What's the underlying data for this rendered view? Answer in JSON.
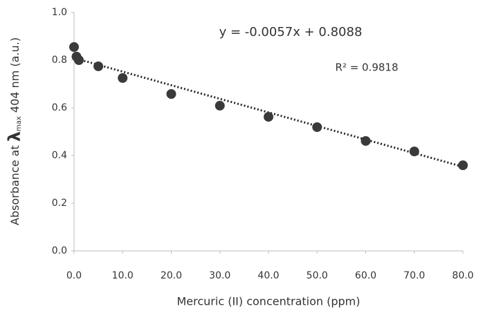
{
  "chart_data": {
    "type": "scatter",
    "xlabel": "Mercuric (II) concentration (ppm)",
    "ylabel": [
      "Absorbance at ",
      "λ",
      "max",
      " 404 nm (a.u.)"
    ],
    "x": [
      0,
      0.5,
      1,
      5,
      10,
      20,
      30,
      40,
      50,
      60,
      70,
      80
    ],
    "values": [
      0.855,
      0.815,
      0.8,
      0.774,
      0.725,
      0.658,
      0.609,
      0.562,
      0.519,
      0.461,
      0.417,
      0.359
    ],
    "color": "#3a3a3a",
    "xlim": [
      0,
      80
    ],
    "xticks": [
      {
        "value": 0,
        "label": "0.0"
      },
      {
        "value": 10,
        "label": "10.0"
      },
      {
        "value": 20,
        "label": "20.0"
      },
      {
        "value": 30,
        "label": "30.0"
      },
      {
        "value": 40,
        "label": "40.0"
      },
      {
        "value": 50,
        "label": "50.0"
      },
      {
        "value": 60,
        "label": "60.0"
      },
      {
        "value": 70,
        "label": "70.0"
      },
      {
        "value": 80,
        "label": "80.0"
      }
    ],
    "ylim": [
      0,
      1
    ],
    "yticks": [
      {
        "value": 0,
        "label": "0.0"
      },
      0.2,
      0.4,
      0.6,
      0.8,
      {
        "value": 1,
        "label": "1.0"
      }
    ],
    "grid": false,
    "trendline": {
      "equation": "y = -0.0057x + 0.8088",
      "slope": -0.0057,
      "intercept": 0.8088,
      "r_squared": "R² = 0.9818",
      "color": "#222222"
    }
  }
}
